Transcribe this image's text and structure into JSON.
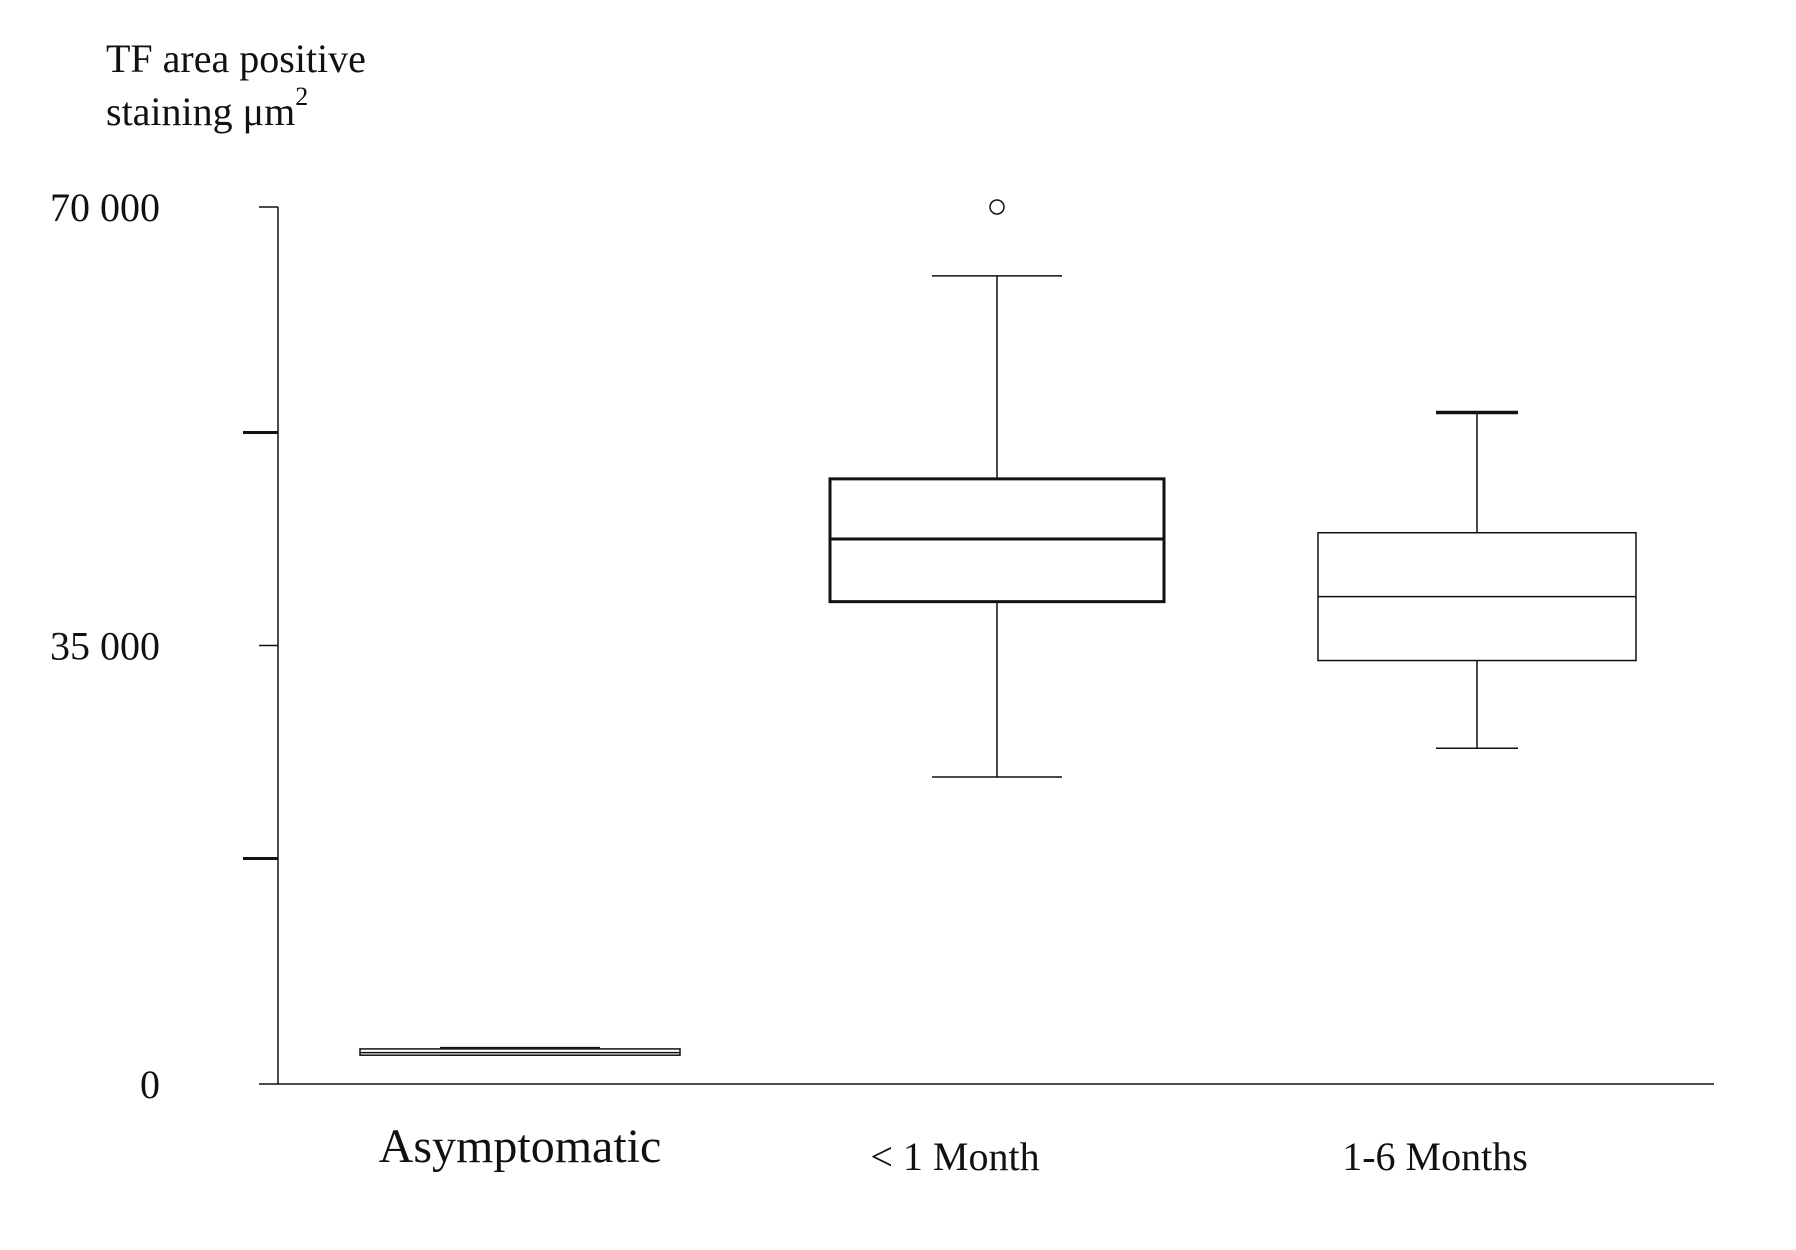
{
  "chart_data": {
    "type": "boxplot",
    "ylabel_line1": "TF area positive",
    "ylabel_line2_prefix": "staining μm",
    "ylabel_superscript": "2",
    "ylim": [
      0,
      70000
    ],
    "y_ticks": [
      {
        "value": 0,
        "label": "0"
      },
      {
        "value": 35000,
        "label": "35 000"
      },
      {
        "value": 70000,
        "label": "70 000"
      }
    ],
    "y_minor_ticks": [
      52000,
      18000
    ],
    "categories": [
      "Asymptomatic",
      "< 1 Month",
      "1-6 Months"
    ],
    "boxes": [
      {
        "category": "Asymptomatic",
        "whisker_low": 2300,
        "q1": 2300,
        "median": 2500,
        "q3": 2800,
        "whisker_high": 2900,
        "outliers": [],
        "bold": false
      },
      {
        "category": "< 1 Month",
        "whisker_low": 24500,
        "q1": 38500,
        "median": 43500,
        "q3": 48300,
        "whisker_high": 64500,
        "outliers": [
          70000
        ],
        "bold": true
      },
      {
        "category": "1-6 Months",
        "whisker_low": 26800,
        "q1": 33800,
        "median": 38900,
        "q3": 44000,
        "whisker_high": 53600,
        "outliers": [],
        "bold": false
      }
    ],
    "grid": false
  }
}
